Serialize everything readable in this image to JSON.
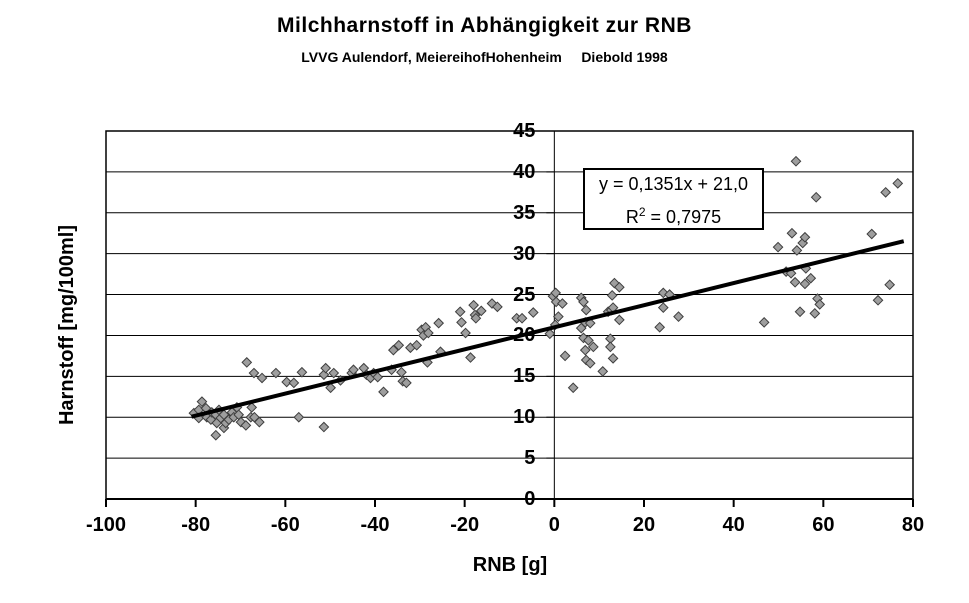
{
  "title": "Milchharnstoff in Abhängigkeit zur RNB",
  "subtitle": "LVVG Aulendorf, MeiereihofHohenheim     Diebold 1998",
  "chart_data": {
    "type": "scatter",
    "title": "Milchharnstoff in Abhängigkeit zur RNB",
    "subtitle": "LVVG Aulendorf, MeiereihofHohenheim     Diebold 1998",
    "xlabel": "RNB [g]",
    "ylabel": "Harnstoff [mg/100ml]",
    "xlim": [
      -100,
      80
    ],
    "ylim": [
      0,
      45
    ],
    "xticks": [
      -100,
      -80,
      -60,
      -40,
      -20,
      0,
      20,
      40,
      60,
      80
    ],
    "yticks": [
      0,
      5,
      10,
      15,
      20,
      25,
      30,
      35,
      40,
      45
    ],
    "grid": "horizontal",
    "legend": "none",
    "marker": {
      "shape": "diamond",
      "fill": "#9e9e9e",
      "stroke": "#3f3f3f"
    },
    "annotation": {
      "equation": "y = 0,1351x + 21,0",
      "r2_base": "R",
      "r2_sup": "2",
      "r2_rest": " = 0,7975"
    },
    "trendline": {
      "slope": 0.1351,
      "intercept": 21.0,
      "x_start": -80.5,
      "x_end": 77.5,
      "color": "#000000",
      "width": 4
    },
    "points": [
      [
        -80.4,
        10.5
      ],
      [
        -79.3,
        10.9
      ],
      [
        -79.3,
        9.9
      ],
      [
        -78.6,
        11.9
      ],
      [
        -77.7,
        11.1
      ],
      [
        -77.5,
        10.0
      ],
      [
        -76.6,
        9.7
      ],
      [
        -76.4,
        10.6
      ],
      [
        -75.5,
        10.3
      ],
      [
        -75.5,
        7.8
      ],
      [
        -75.3,
        9.3
      ],
      [
        -74.8,
        10.9
      ],
      [
        -74.4,
        9.9
      ],
      [
        -73.7,
        10.3
      ],
      [
        -73.7,
        8.7
      ],
      [
        -73.3,
        9.3
      ],
      [
        -72.6,
        9.7
      ],
      [
        -71.9,
        10.6
      ],
      [
        -71.5,
        10.0
      ],
      [
        -70.8,
        11.2
      ],
      [
        -70.4,
        10.3
      ],
      [
        -69.9,
        9.4
      ],
      [
        -68.8,
        9.0
      ],
      [
        -67.7,
        10.0
      ],
      [
        -67.5,
        11.2
      ],
      [
        -66.9,
        10.0
      ],
      [
        -65.8,
        9.4
      ],
      [
        -68.6,
        16.7
      ],
      [
        -67.0,
        15.4
      ],
      [
        -65.2,
        14.8
      ],
      [
        -62.1,
        15.4
      ],
      [
        -59.7,
        14.3
      ],
      [
        -58.1,
        14.2
      ],
      [
        -57.0,
        10.0
      ],
      [
        -56.3,
        15.5
      ],
      [
        -51.4,
        15.2
      ],
      [
        -51.4,
        8.8
      ],
      [
        -51.0,
        16.0
      ],
      [
        -49.9,
        13.6
      ],
      [
        -49.2,
        15.4
      ],
      [
        -47.7,
        14.5
      ],
      [
        -45.2,
        15.4
      ],
      [
        -44.8,
        15.8
      ],
      [
        -42.5,
        16.0
      ],
      [
        -41.9,
        15.2
      ],
      [
        -41.0,
        14.8
      ],
      [
        -40.3,
        15.4
      ],
      [
        -39.4,
        14.9
      ],
      [
        -38.1,
        13.1
      ],
      [
        -36.3,
        15.8
      ],
      [
        -35.9,
        18.2
      ],
      [
        -34.7,
        18.8
      ],
      [
        -34.1,
        15.5
      ],
      [
        -33.8,
        14.4
      ],
      [
        -33.0,
        14.2
      ],
      [
        -32.1,
        18.5
      ],
      [
        -30.7,
        18.8
      ],
      [
        -29.6,
        20.7
      ],
      [
        -29.2,
        20.0
      ],
      [
        -28.7,
        21.0
      ],
      [
        -28.1,
        20.3
      ],
      [
        -28.3,
        16.7
      ],
      [
        -25.8,
        21.5
      ],
      [
        -25.4,
        18.0
      ],
      [
        -21.0,
        22.9
      ],
      [
        -20.7,
        21.6
      ],
      [
        -19.8,
        20.3
      ],
      [
        -18.7,
        17.3
      ],
      [
        -18.0,
        23.7
      ],
      [
        -17.7,
        22.5
      ],
      [
        -17.5,
        22.1
      ],
      [
        -16.3,
        23.0
      ],
      [
        -13.9,
        23.9
      ],
      [
        -12.7,
        23.5
      ],
      [
        -8.4,
        22.1
      ],
      [
        -7.2,
        22.1
      ],
      [
        -4.7,
        22.8
      ],
      [
        -1.0,
        20.2
      ],
      [
        -0.3,
        24.8
      ],
      [
        0.3,
        25.2
      ],
      [
        0.4,
        24.1
      ],
      [
        0.9,
        22.3
      ],
      [
        0.2,
        21.3
      ],
      [
        1.8,
        23.9
      ],
      [
        2.4,
        17.5
      ],
      [
        4.2,
        13.6
      ],
      [
        6.0,
        24.6
      ],
      [
        6.5,
        24.1
      ],
      [
        7.1,
        23.1
      ],
      [
        6.0,
        20.9
      ],
      [
        6.9,
        21.6
      ],
      [
        8.0,
        21.5
      ],
      [
        6.5,
        19.7
      ],
      [
        7.6,
        19.4
      ],
      [
        6.9,
        18.2
      ],
      [
        8.7,
        18.6
      ],
      [
        7.1,
        17.0
      ],
      [
        8.0,
        16.6
      ],
      [
        10.8,
        15.6
      ],
      [
        12.0,
        22.9
      ],
      [
        12.5,
        19.6
      ],
      [
        12.5,
        18.6
      ],
      [
        12.7,
        23.1
      ],
      [
        12.9,
        24.9
      ],
      [
        13.1,
        23.4
      ],
      [
        13.1,
        17.2
      ],
      [
        13.4,
        26.4
      ],
      [
        14.5,
        25.9
      ],
      [
        14.5,
        21.9
      ],
      [
        23.5,
        21.0
      ],
      [
        24.3,
        25.2
      ],
      [
        24.3,
        23.4
      ],
      [
        25.7,
        25.0
      ],
      [
        27.7,
        22.3
      ],
      [
        46.8,
        21.6
      ],
      [
        49.9,
        30.8
      ],
      [
        51.7,
        27.8
      ],
      [
        52.8,
        27.6
      ],
      [
        53.0,
        32.5
      ],
      [
        53.7,
        26.5
      ],
      [
        53.9,
        41.3
      ],
      [
        54.1,
        30.4
      ],
      [
        54.8,
        22.9
      ],
      [
        55.4,
        31.3
      ],
      [
        55.9,
        32.0
      ],
      [
        55.9,
        26.3
      ],
      [
        56.1,
        28.2
      ],
      [
        57.2,
        27.0
      ],
      [
        58.1,
        22.7
      ],
      [
        58.4,
        36.9
      ],
      [
        58.7,
        24.5
      ],
      [
        59.2,
        23.8
      ],
      [
        70.8,
        32.4
      ],
      [
        72.2,
        24.3
      ],
      [
        73.9,
        37.5
      ],
      [
        74.8,
        26.2
      ],
      [
        76.6,
        38.6
      ]
    ]
  }
}
